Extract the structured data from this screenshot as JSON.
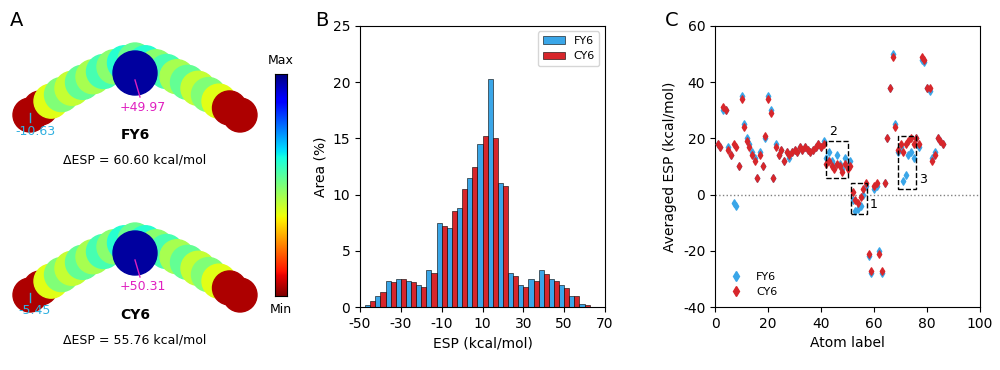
{
  "chart_data": [
    {
      "type": "esp_map",
      "panel": "A",
      "molecules": [
        {
          "name": "FY6",
          "max_label": "+49.97",
          "min_label": "-10.63",
          "delta_label": "ΔESP = 60.60 kcal/mol"
        },
        {
          "name": "CY6",
          "max_label": "+50.31",
          "min_label": "-5.45",
          "delta_label": "ΔESP = 55.76 kcal/mol"
        }
      ],
      "colorbar_labels": [
        "Max",
        "Min"
      ]
    },
    {
      "type": "bar",
      "panel": "B",
      "xlabel": "ESP (kcal/mol)",
      "ylabel": "Area (%)",
      "x": [
        -45,
        -40,
        -35,
        -30,
        -25,
        -20,
        -15,
        -10,
        -5,
        0,
        5,
        10,
        15,
        20,
        25,
        30,
        35,
        40,
        45,
        50,
        55,
        60
      ],
      "series": [
        {
          "name": "FY6",
          "color": "#3aa6e8",
          "values": [
            0.2,
            1.0,
            2.3,
            2.5,
            2.3,
            2.0,
            3.3,
            7.5,
            7.0,
            8.8,
            11.5,
            14.5,
            20.3,
            11.0,
            3.0,
            2.0,
            2.5,
            3.3,
            2.5,
            2.0,
            1.0,
            0.3
          ]
        },
        {
          "name": "CY6",
          "color": "#d7262b",
          "values": [
            0.5,
            1.3,
            2.2,
            2.5,
            2.2,
            1.8,
            3.0,
            7.2,
            8.5,
            10.5,
            12.5,
            15.2,
            15.0,
            10.8,
            2.8,
            1.8,
            2.3,
            2.9,
            2.3,
            1.7,
            1.0,
            0.2
          ]
        }
      ],
      "xlim": [
        -50,
        70
      ],
      "xticks": [
        -50,
        -30,
        -10,
        10,
        30,
        50,
        70
      ],
      "ylim": [
        0,
        25
      ],
      "yticks": [
        0,
        5,
        10,
        15,
        20,
        25
      ],
      "legend": "upper right"
    },
    {
      "type": "scatter",
      "panel": "C",
      "xlabel": "Atom label",
      "ylabel": "Averaged ESP (kcal/mol)",
      "x": [
        1,
        2,
        3,
        4,
        5,
        6,
        7,
        8,
        9,
        10,
        11,
        12,
        13,
        14,
        15,
        16,
        17,
        18,
        19,
        20,
        21,
        22,
        23,
        24,
        25,
        26,
        27,
        28,
        29,
        30,
        31,
        32,
        33,
        34,
        35,
        36,
        37,
        38,
        39,
        40,
        41,
        42,
        43,
        44,
        45,
        46,
        47,
        48,
        49,
        50,
        51,
        52,
        53,
        54,
        55,
        56,
        57,
        58,
        59,
        60,
        61,
        62,
        63,
        64,
        65,
        66,
        67,
        68,
        69,
        70,
        71,
        72,
        73,
        74,
        75,
        76,
        77,
        78,
        79,
        80,
        81,
        82,
        83,
        84,
        85,
        86
      ],
      "series": [
        {
          "name": "FY6",
          "color": "#3aa6e8",
          "marker": "diamond",
          "values": [
            18,
            17,
            30,
            30,
            17,
            14,
            -3,
            -4,
            10,
            35,
            25,
            20,
            18,
            15,
            13,
            6,
            15,
            10,
            20,
            35,
            30,
            6,
            18,
            14,
            16,
            12,
            15,
            13,
            15,
            16,
            15,
            17,
            16,
            17,
            16,
            15,
            16,
            17,
            18,
            17,
            19,
            13,
            15,
            12,
            10,
            14,
            11,
            9,
            13,
            10,
            12,
            -2,
            -6,
            -5,
            -4,
            0,
            3,
            -22,
            -28,
            2,
            3,
            -20,
            -28,
            4,
            20,
            38,
            50,
            25,
            15,
            17,
            5,
            7,
            14,
            15,
            13,
            20,
            17,
            48,
            47,
            38,
            37,
            13,
            15,
            20,
            19,
            18
          ]
        },
        {
          "name": "CY6",
          "color": "#d7262b",
          "marker": "diamond",
          "values": [
            18,
            17,
            31,
            30,
            16,
            14,
            18,
            17,
            10,
            34,
            24,
            19,
            17,
            14,
            12,
            6,
            14,
            10,
            21,
            34,
            29,
            6,
            17,
            14,
            16,
            12,
            15,
            14,
            15,
            16,
            15,
            17,
            16,
            17,
            16,
            15,
            16,
            17,
            18,
            17,
            18,
            11,
            12,
            10,
            9,
            11,
            10,
            8,
            11,
            9,
            10,
            1,
            -2,
            -3,
            -1,
            2,
            4,
            -21,
            -27,
            3,
            4,
            -21,
            -27,
            4,
            20,
            38,
            49,
            24,
            16,
            18,
            15,
            18,
            19,
            20,
            18,
            20,
            18,
            49,
            48,
            38,
            38,
            12,
            14,
            20,
            19,
            18
          ]
        }
      ],
      "reference_line": 0,
      "regions": [
        {
          "label": "1",
          "x": [
            51.5,
            57.5
          ],
          "y": [
            -7,
            4
          ]
        },
        {
          "label": "2",
          "x": [
            42,
            50
          ],
          "y": [
            6,
            19
          ]
        },
        {
          "label": "3",
          "x": [
            69,
            76
          ],
          "y": [
            2,
            21
          ]
        }
      ],
      "xlim": [
        0,
        100
      ],
      "xticks": [
        0,
        20,
        40,
        60,
        80,
        100
      ],
      "ylim": [
        -40,
        60
      ],
      "yticks": [
        -40,
        -20,
        0,
        20,
        40,
        60
      ],
      "legend": "lower left"
    }
  ]
}
